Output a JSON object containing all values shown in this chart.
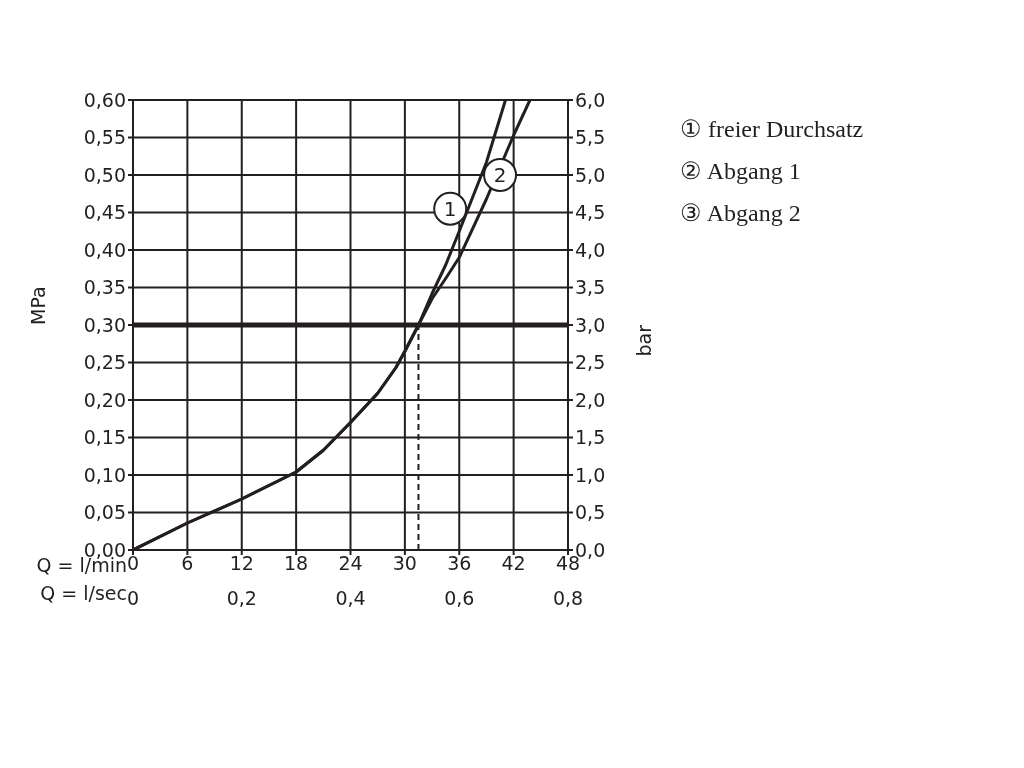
{
  "chart_data": {
    "type": "line",
    "xlabel": "Q = l/min",
    "x2label": "Q = l/sec",
    "ylabel": "MPa",
    "y2label": "bar",
    "series": [
      {
        "color": "#231f20",
        "x": [
          0,
          6,
          12,
          18,
          21,
          24,
          27,
          29,
          30,
          31.5,
          33,
          34.5,
          36,
          39,
          41.1
        ],
        "values": [
          0,
          0.036,
          0.068,
          0.104,
          0.133,
          0.17,
          0.209,
          0.243,
          0.265,
          0.3,
          0.342,
          0.38,
          0.425,
          0.517,
          0.6
        ]
      },
      {
        "color": "#231f20",
        "x": [
          0,
          6,
          12,
          18,
          21,
          24,
          27,
          29,
          30,
          31.5,
          33,
          34.5,
          36,
          39,
          42,
          43.8
        ],
        "values": [
          0,
          0.036,
          0.068,
          0.104,
          0.133,
          0.17,
          0.209,
          0.243,
          0.265,
          0.3,
          0.335,
          0.362,
          0.39,
          0.468,
          0.553,
          0.6
        ]
      }
    ],
    "xlim": [
      0,
      48
    ],
    "xticks": [
      0,
      6,
      12,
      18,
      24,
      30,
      36,
      42,
      48
    ],
    "x2lim": [
      0,
      0.8
    ],
    "x2ticks": [
      {
        "value": 0,
        "label": "0"
      },
      {
        "value": 0.2,
        "label": "0,2"
      },
      {
        "value": 0.4,
        "label": "0,4"
      },
      {
        "value": 0.6,
        "label": "0,6"
      },
      {
        "value": 0.8,
        "label": "0,8"
      }
    ],
    "ylim": [
      0,
      0.6
    ],
    "yticks": [
      {
        "value": 0,
        "label": "0,00"
      },
      {
        "value": 0.05,
        "label": "0,05"
      },
      {
        "value": 0.1,
        "label": "0,10"
      },
      {
        "value": 0.15,
        "label": "0,15"
      },
      {
        "value": 0.2,
        "label": "0,20"
      },
      {
        "value": 0.25,
        "label": "0,25"
      },
      {
        "value": 0.3,
        "label": "0,30"
      },
      {
        "value": 0.35,
        "label": "0,35"
      },
      {
        "value": 0.4,
        "label": "0,40"
      },
      {
        "value": 0.45,
        "label": "0,45"
      },
      {
        "value": 0.5,
        "label": "0,50"
      },
      {
        "value": 0.55,
        "label": "0,55"
      },
      {
        "value": 0.6,
        "label": "0,60"
      }
    ],
    "y2lim": [
      0,
      6
    ],
    "y2ticks": [
      {
        "value": 0,
        "label": "0,0"
      },
      {
        "value": 0.5,
        "label": "0,5"
      },
      {
        "value": 1,
        "label": "1,0"
      },
      {
        "value": 1.5,
        "label": "1,5"
      },
      {
        "value": 2,
        "label": "2,0"
      },
      {
        "value": 2.5,
        "label": "2,5"
      },
      {
        "value": 3,
        "label": "3,0"
      },
      {
        "value": 3.5,
        "label": "3,5"
      },
      {
        "value": 4,
        "label": "4,0"
      },
      {
        "value": 4.5,
        "label": "4,5"
      },
      {
        "value": 5,
        "label": "5,0"
      },
      {
        "value": 5.5,
        "label": "5,5"
      },
      {
        "value": 6,
        "label": "6,0"
      }
    ],
    "ref_lines": [
      {
        "axis": "y",
        "value": 0.3,
        "color": "#231f20",
        "line_style": "solid"
      },
      {
        "axis": "x",
        "value": 31.5,
        "color": "#231f20",
        "line_style": "dashed"
      }
    ],
    "annotations": [
      {
        "text": "1",
        "x": 35,
        "y": 0.455
      },
      {
        "text": "2",
        "x": 40.5,
        "y": 0.5
      },
      "① freier Durchsatz",
      "② Abgang 1",
      "③ Abgang 2"
    ],
    "grid": true,
    "line_style": "solid",
    "marker": "none"
  }
}
